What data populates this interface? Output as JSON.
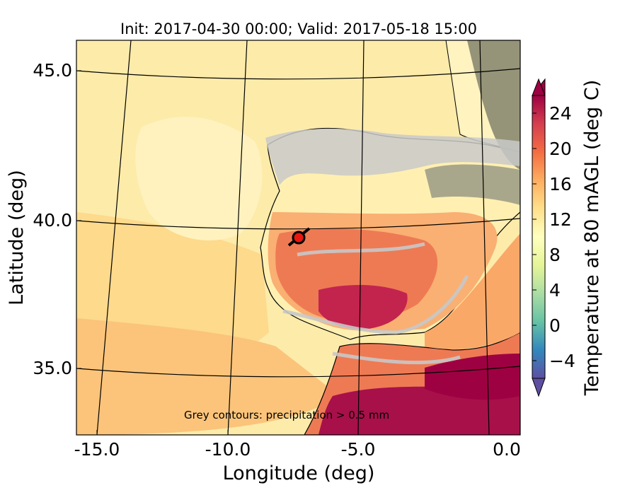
{
  "title": "Init: 2017-04-30 00:00; Valid: 2017-05-18 15:00",
  "axes": {
    "xlabel": "Longitude (deg)",
    "ylabel": "Latitude (deg)",
    "x_ticks": [
      "-15.0",
      "-10.0",
      "-5.0",
      "0.0"
    ],
    "y_ticks": [
      "45.0",
      "40.0",
      "35.0"
    ],
    "xlim": [
      -16,
      0.3
    ],
    "ylim": [
      32.8,
      46.2
    ]
  },
  "annotation": "Grey contours: precipitation > 0.5 mm",
  "colorbar": {
    "label": "Temperature at 80 mAGL (deg C)",
    "ticks": [
      "−4",
      "0",
      "4",
      "8",
      "12",
      "16",
      "20",
      "24"
    ],
    "range": [
      -6,
      26
    ],
    "colors": [
      "#5e4fa2",
      "#3288bd",
      "#66c2a5",
      "#abdda4",
      "#e6f598",
      "#ffffbf",
      "#fee08b",
      "#fdae61",
      "#f46d43",
      "#d53e4f",
      "#9e0142"
    ]
  },
  "site_marker": {
    "lon": -7.7,
    "lat": 39.4,
    "color": "#e8170f"
  },
  "fill_colors": {
    "ocean_north": "#fdeeaa",
    "ocean_mid": "#fdd88a",
    "ocean_south": "#fbc27a",
    "land_north": "#fff0b0",
    "land_warm": "#f9b072",
    "land_hot": "#ee7a54",
    "land_hottest": "#b0164a",
    "alps_grey": "#8a8a70",
    "precip_grey": "#c8c8c8"
  }
}
